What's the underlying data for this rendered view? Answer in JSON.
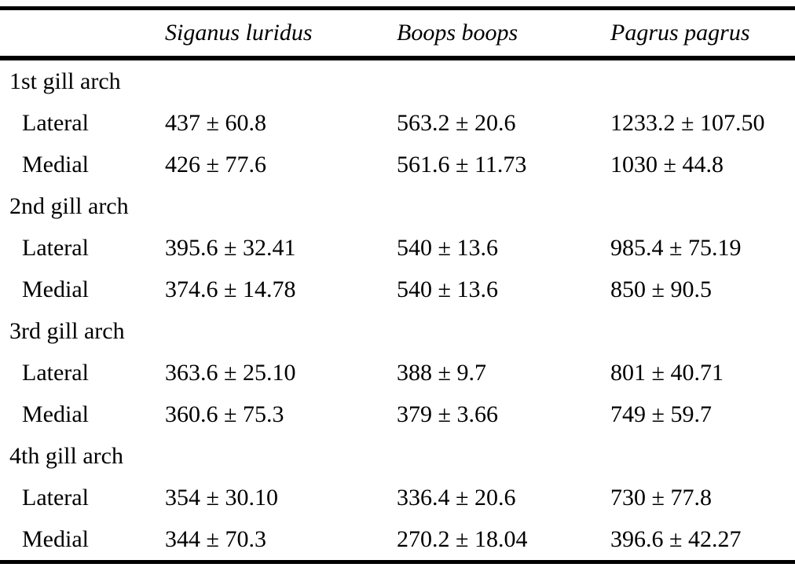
{
  "page": {
    "background": "#ffffff",
    "text_color": "#000000",
    "rule_color": "#000000"
  },
  "table": {
    "columns": [
      "",
      "Siganus luridus",
      "Boops boops",
      "Pagrus pagrus"
    ],
    "sections": [
      {
        "label": "1st gill arch",
        "rows": [
          {
            "label": "Lateral",
            "values": [
              "437 ± 60.8",
              "563.2 ± 20.6",
              "1233.2 ± 107.50"
            ]
          },
          {
            "label": "Medial",
            "values": [
              "426 ± 77.6",
              "561.6 ± 11.73",
              "1030 ± 44.8"
            ]
          }
        ]
      },
      {
        "label": "2nd gill arch",
        "rows": [
          {
            "label": "Lateral",
            "values": [
              "395.6 ± 32.41",
              "540 ± 13.6",
              "985.4 ± 75.19"
            ]
          },
          {
            "label": "Medial",
            "values": [
              "374.6 ± 14.78",
              "540 ± 13.6",
              "850 ± 90.5"
            ]
          }
        ]
      },
      {
        "label": "3rd gill arch",
        "rows": [
          {
            "label": "Lateral",
            "values": [
              "363.6 ± 25.10",
              "388 ± 9.7",
              "801 ± 40.71"
            ]
          },
          {
            "label": "Medial",
            "values": [
              "360.6 ± 75.3",
              "379 ± 3.66",
              "749 ± 59.7"
            ]
          }
        ]
      },
      {
        "label": "4th gill arch",
        "rows": [
          {
            "label": "Lateral",
            "values": [
              "354 ± 30.10",
              "336.4 ± 20.6",
              "730 ± 77.8"
            ]
          },
          {
            "label": "Medial",
            "values": [
              "344 ± 70.3",
              "270.2 ± 18.04",
              "396.6 ± 42.27"
            ]
          }
        ]
      }
    ]
  },
  "chart_data": {
    "type": "table",
    "title": "",
    "columns": [
      "Siganus luridus",
      "Boops boops",
      "Pagrus pagrus"
    ],
    "row_groups": [
      "1st gill arch",
      "2nd gill arch",
      "3rd gill arch",
      "4th gill arch"
    ],
    "series": [
      {
        "name": "Siganus luridus",
        "values": [
          437,
          426,
          395.6,
          374.6,
          363.6,
          360.6,
          354,
          344
        ],
        "sd": [
          60.8,
          77.6,
          32.41,
          14.78,
          25.1,
          75.3,
          30.1,
          70.3
        ]
      },
      {
        "name": "Boops boops",
        "values": [
          563.2,
          561.6,
          540,
          540,
          388,
          379,
          336.4,
          270.2
        ],
        "sd": [
          20.6,
          11.73,
          13.6,
          13.6,
          9.7,
          3.66,
          20.6,
          18.04
        ]
      },
      {
        "name": "Pagrus pagrus",
        "values": [
          1233.2,
          1030,
          985.4,
          850,
          801,
          749,
          730,
          396.6
        ],
        "sd": [
          107.5,
          44.8,
          75.19,
          90.5,
          40.71,
          59.7,
          77.8,
          42.27
        ]
      }
    ],
    "row_labels": [
      "1st Lateral",
      "1st Medial",
      "2nd Lateral",
      "2nd Medial",
      "3rd Lateral",
      "3rd Medial",
      "4th Lateral",
      "4th Medial"
    ]
  }
}
